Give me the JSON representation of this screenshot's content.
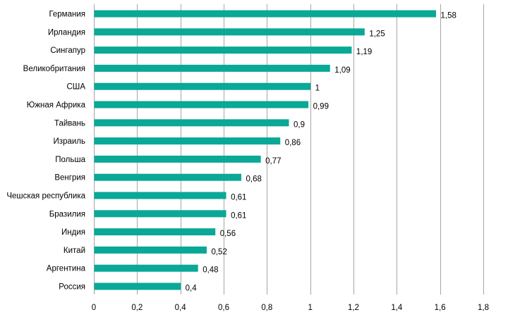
{
  "chart_data": {
    "type": "bar",
    "orientation": "horizontal",
    "title": "",
    "xlabel": "",
    "ylabel": "",
    "categories": [
      "Германия",
      "Ирландия",
      "Сингапур",
      "Великобритания",
      "США",
      "Южная Африка",
      "Тайвань",
      "Израиль",
      "Польша",
      "Венгрия",
      "Чешская республика",
      "Бразилия",
      "Индия",
      "Китай",
      "Аргентина",
      "Россия"
    ],
    "values": [
      1.58,
      1.25,
      1.19,
      1.09,
      1,
      0.99,
      0.9,
      0.86,
      0.77,
      0.68,
      0.61,
      0.61,
      0.56,
      0.52,
      0.48,
      0.4
    ],
    "value_labels": [
      "1,58",
      "1,25",
      "1,19",
      "1,09",
      "1",
      "0,99",
      "0,9",
      "0,86",
      "0,77",
      "0,68",
      "0,61",
      "0,61",
      "0,56",
      "0,52",
      "0,48",
      "0,4"
    ],
    "xlim": [
      0,
      1.8
    ],
    "x_ticks": [
      0,
      0.2,
      0.4,
      0.6,
      0.8,
      1,
      1.2,
      1.4,
      1.6,
      1.8
    ],
    "x_tick_labels": [
      "0",
      "0,2",
      "0,4",
      "0,6",
      "0,8",
      "1",
      "1,2",
      "1,4",
      "1,6",
      "1,8"
    ],
    "grid": "vertical",
    "legend": "none",
    "bar_color": "#0aa896"
  }
}
